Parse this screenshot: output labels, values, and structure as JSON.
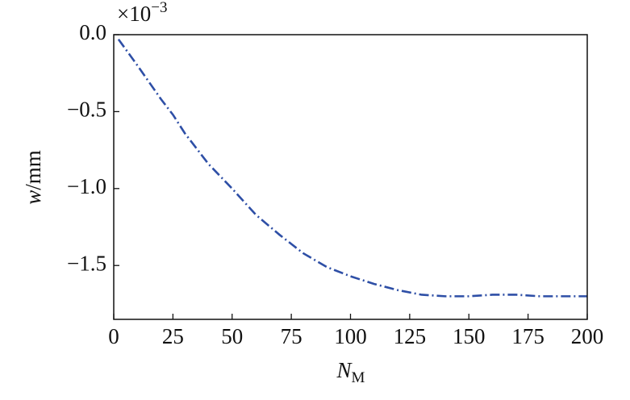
{
  "chart_data": {
    "type": "line",
    "xlabel": "N",
    "xlabel_sub": "M",
    "ylabel_var": "w",
    "ylabel_unit": "/mm",
    "offset_text": "×10",
    "offset_exp": "−3",
    "xlim": [
      0,
      200
    ],
    "xticks": [
      0,
      25,
      50,
      75,
      100,
      125,
      150,
      175,
      200
    ],
    "ylim": [
      -1.85,
      0
    ],
    "yticks": [
      {
        "value": 0,
        "label": "0.0"
      },
      {
        "value": -0.5,
        "label": "−0.5"
      },
      {
        "value": -1.0,
        "label": "−1.0"
      },
      {
        "value": -1.5,
        "label": "−1.5"
      }
    ],
    "grid": false,
    "series": [
      {
        "color": "#2e4fa6",
        "x": [
          2,
          10,
          20,
          25,
          30,
          40,
          50,
          60,
          70,
          75,
          80,
          90,
          100,
          110,
          120,
          130,
          140,
          150,
          160,
          170,
          180,
          190,
          200
        ],
        "values": [
          -0.03,
          -0.2,
          -0.42,
          -0.52,
          -0.64,
          -0.84,
          -1.0,
          -1.17,
          -1.3,
          -1.36,
          -1.42,
          -1.51,
          -1.57,
          -1.62,
          -1.66,
          -1.69,
          -1.7,
          -1.7,
          -1.69,
          -1.69,
          -1.7,
          -1.7,
          -1.7
        ]
      }
    ]
  }
}
